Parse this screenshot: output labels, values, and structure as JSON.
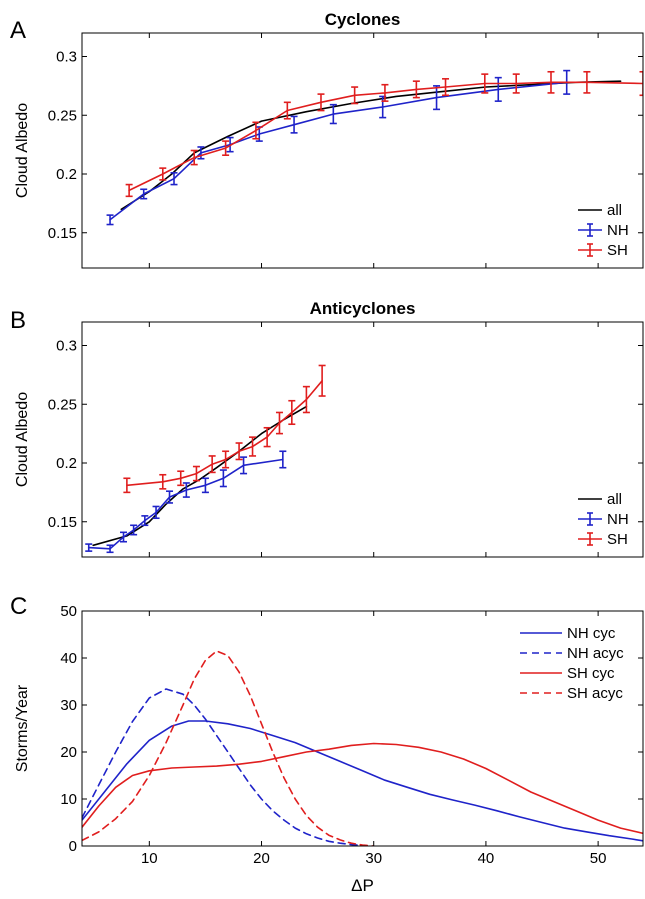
{
  "colors": {
    "all": "#000000",
    "NH": "#1f23c9",
    "SH": "#e01e1e"
  },
  "chart_data": [
    {
      "panel": "A",
      "type": "line",
      "title": "Cyclones",
      "xlabel": "",
      "ylabel": "Cloud Albedo",
      "xlim": [
        4,
        54
      ],
      "ylim": [
        0.12,
        0.32
      ],
      "xticks": [
        10,
        20,
        30,
        40,
        50
      ],
      "yticks": [
        0.15,
        0.2,
        0.25,
        0.3
      ],
      "ytick_labels": [
        "0.15",
        "0.2",
        "0.25",
        "0.3"
      ],
      "legend": {
        "position": "bottom-right",
        "entries": [
          "all",
          "NH",
          "SH"
        ]
      },
      "series": [
        {
          "name": "all",
          "style": "solid",
          "x": [
            7.5,
            10,
            12,
            14,
            17,
            20,
            24,
            28,
            32,
            36,
            40,
            44,
            48,
            52
          ],
          "y": [
            0.17,
            0.185,
            0.2,
            0.218,
            0.232,
            0.245,
            0.253,
            0.26,
            0.266,
            0.27,
            0.274,
            0.276,
            0.278,
            0.279
          ]
        },
        {
          "name": "NH",
          "style": "errorbar",
          "x": [
            6.5,
            9.5,
            12.2,
            14.6,
            17.2,
            19.8,
            22.9,
            26.4,
            30.8,
            35.6,
            41.1,
            47.2
          ],
          "y": [
            0.161,
            0.183,
            0.196,
            0.218,
            0.225,
            0.234,
            0.242,
            0.251,
            0.257,
            0.265,
            0.272,
            0.278
          ],
          "err": [
            0.004,
            0.004,
            0.005,
            0.005,
            0.006,
            0.006,
            0.007,
            0.008,
            0.009,
            0.01,
            0.01,
            0.01
          ]
        },
        {
          "name": "SH",
          "style": "errorbar",
          "x": [
            8.2,
            11.2,
            14.0,
            16.8,
            19.5,
            22.3,
            25.3,
            28.3,
            31.0,
            33.8,
            36.4,
            39.9,
            42.7,
            45.8,
            49.0,
            54.0
          ],
          "y": [
            0.186,
            0.2,
            0.214,
            0.222,
            0.237,
            0.254,
            0.261,
            0.267,
            0.269,
            0.272,
            0.274,
            0.277,
            0.277,
            0.278,
            0.278,
            0.277
          ],
          "err": [
            0.005,
            0.005,
            0.006,
            0.006,
            0.007,
            0.007,
            0.007,
            0.007,
            0.007,
            0.007,
            0.007,
            0.008,
            0.008,
            0.009,
            0.009,
            0.01
          ]
        }
      ]
    },
    {
      "panel": "B",
      "type": "line",
      "title": "Anticyclones",
      "xlabel": "",
      "ylabel": "Cloud Albedo",
      "xlim": [
        4,
        54
      ],
      "ylim": [
        0.12,
        0.32
      ],
      "xticks": [
        10,
        20,
        30,
        40,
        50
      ],
      "yticks": [
        0.15,
        0.2,
        0.25,
        0.3
      ],
      "ytick_labels": [
        "0.15",
        "0.2",
        "0.25",
        "0.3"
      ],
      "legend": {
        "position": "bottom-right",
        "entries": [
          "all",
          "NH",
          "SH"
        ]
      },
      "series": [
        {
          "name": "all",
          "style": "solid",
          "x": [
            5,
            8,
            10,
            11.5,
            13,
            14.5,
            16,
            18,
            20,
            22,
            24
          ],
          "y": [
            0.13,
            0.138,
            0.15,
            0.165,
            0.178,
            0.186,
            0.196,
            0.21,
            0.225,
            0.237,
            0.248
          ]
        },
        {
          "name": "NH",
          "style": "errorbar",
          "x": [
            4.6,
            6.5,
            7.7,
            8.6,
            9.6,
            10.6,
            11.8,
            13.3,
            15.0,
            16.6,
            18.4,
            21.9
          ],
          "y": [
            0.128,
            0.127,
            0.137,
            0.143,
            0.151,
            0.158,
            0.171,
            0.177,
            0.181,
            0.187,
            0.198,
            0.203
          ],
          "err": [
            0.003,
            0.003,
            0.004,
            0.004,
            0.004,
            0.005,
            0.005,
            0.006,
            0.006,
            0.007,
            0.007,
            0.007
          ]
        },
        {
          "name": "SH",
          "style": "errorbar",
          "x": [
            8.0,
            11.2,
            12.8,
            14.2,
            15.6,
            16.8,
            18.0,
            19.2,
            20.5,
            21.6,
            22.7,
            24.0,
            25.4
          ],
          "y": [
            0.181,
            0.184,
            0.187,
            0.191,
            0.199,
            0.203,
            0.21,
            0.214,
            0.222,
            0.234,
            0.243,
            0.254,
            0.27
          ],
          "err": [
            0.006,
            0.006,
            0.006,
            0.006,
            0.007,
            0.007,
            0.007,
            0.008,
            0.008,
            0.009,
            0.01,
            0.011,
            0.013
          ]
        }
      ]
    },
    {
      "panel": "C",
      "type": "line",
      "title": "",
      "xlabel": "ΔP",
      "ylabel": "Storms/Year",
      "xlim": [
        4,
        54
      ],
      "ylim": [
        0,
        50
      ],
      "xticks": [
        10,
        20,
        30,
        40,
        50
      ],
      "yticks": [
        0,
        10,
        20,
        30,
        40,
        50
      ],
      "ytick_labels": [
        "0",
        "10",
        "20",
        "30",
        "40",
        "50"
      ],
      "legend": {
        "position": "top-right",
        "entries": [
          "NH cyc",
          "NH acyc",
          "SH cyc",
          "SH acyc"
        ]
      },
      "series": [
        {
          "name": "NH cyc",
          "color_key": "NH",
          "style": "solid",
          "x": [
            4,
            6,
            8,
            10,
            12,
            13.5,
            15,
            17,
            19,
            21,
            23,
            25,
            27,
            29,
            31,
            33,
            35,
            37,
            39,
            41,
            43,
            45,
            47,
            49,
            51,
            53,
            54
          ],
          "y": [
            5.5,
            11.5,
            17.5,
            22.5,
            25.5,
            26.6,
            26.6,
            26,
            25,
            23.5,
            22,
            20,
            18,
            16,
            14,
            12.5,
            11,
            9.8,
            8.7,
            7.5,
            6.2,
            5,
            3.8,
            3,
            2.2,
            1.5,
            1.1
          ]
        },
        {
          "name": "NH acyc",
          "color_key": "NH",
          "style": "dashed",
          "x": [
            4,
            5.5,
            7,
            8.5,
            10,
            11.5,
            13,
            14,
            15,
            16,
            17,
            18,
            19,
            20,
            21,
            22,
            23,
            24,
            25,
            26,
            27,
            28,
            29
          ],
          "y": [
            6,
            13,
            20,
            26.5,
            31.5,
            33.4,
            32.3,
            30,
            27,
            23.5,
            20,
            16.5,
            13,
            10,
            7.5,
            5.5,
            3.8,
            2.6,
            1.7,
            1.0,
            0.6,
            0.3,
            0.1
          ]
        },
        {
          "name": "SH cyc",
          "color_key": "SH",
          "style": "solid",
          "x": [
            4,
            5.5,
            7,
            8.5,
            10,
            12,
            14,
            16,
            18,
            20,
            22,
            24,
            26,
            28,
            30,
            32,
            34,
            36,
            38,
            40,
            42,
            44,
            46,
            48,
            50,
            52,
            54
          ],
          "y": [
            4,
            8.5,
            12.5,
            15,
            16,
            16.6,
            16.8,
            17,
            17.4,
            18,
            19,
            20,
            20.6,
            21.4,
            21.8,
            21.6,
            21,
            20,
            18.5,
            16.5,
            14,
            11.5,
            9.5,
            7.5,
            5.5,
            3.8,
            2.7
          ]
        },
        {
          "name": "SH acyc",
          "color_key": "SH",
          "style": "dashed",
          "x": [
            4,
            5.5,
            7,
            8.5,
            10,
            11.5,
            13,
            14,
            15,
            16,
            17,
            18,
            19,
            20,
            21,
            22,
            23,
            24,
            25,
            26,
            27,
            28,
            29,
            30
          ],
          "y": [
            1.2,
            3,
            5.8,
            9.5,
            15,
            22,
            30,
            35.5,
            39.5,
            41.5,
            40.5,
            37,
            32,
            26,
            20,
            14.5,
            10,
            6.5,
            4,
            2.3,
            1.3,
            0.6,
            0.2,
            0
          ]
        }
      ]
    }
  ]
}
